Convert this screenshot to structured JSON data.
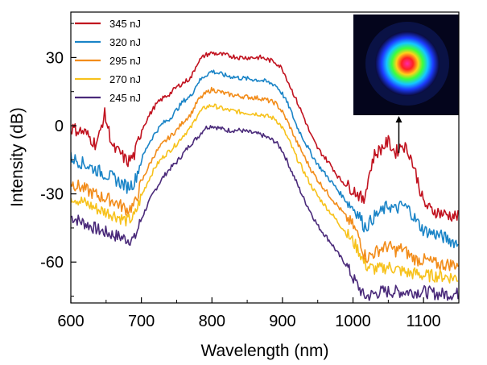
{
  "chart_data": {
    "type": "line",
    "xlabel": "Wavelength (nm)",
    "ylabel": "Intensity (dB)",
    "xlim": [
      600,
      1150
    ],
    "ylim": [
      -78,
      50
    ],
    "xticks": [
      600,
      700,
      800,
      900,
      1000,
      1100
    ],
    "yticks": [
      -60,
      -30,
      0,
      30
    ],
    "legend_position": "top-left",
    "inset": {
      "description": "beam profile image",
      "arrow_points_to_x": 1065
    },
    "series": [
      {
        "name": "345 nJ",
        "color": "#c1121f",
        "noise": 1.3,
        "points": [
          [
            600,
            -1
          ],
          [
            620,
            -3
          ],
          [
            635,
            -8
          ],
          [
            640,
            -5
          ],
          [
            645,
            2
          ],
          [
            648,
            5
          ],
          [
            652,
            0
          ],
          [
            660,
            -10
          ],
          [
            670,
            -12
          ],
          [
            680,
            -16
          ],
          [
            690,
            -13
          ],
          [
            700,
            -2
          ],
          [
            710,
            4
          ],
          [
            720,
            9
          ],
          [
            730,
            12
          ],
          [
            740,
            14
          ],
          [
            750,
            17
          ],
          [
            760,
            19
          ],
          [
            770,
            21
          ],
          [
            780,
            28
          ],
          [
            790,
            31
          ],
          [
            800,
            32
          ],
          [
            820,
            31
          ],
          [
            840,
            30
          ],
          [
            870,
            30
          ],
          [
            890,
            28
          ],
          [
            900,
            25
          ],
          [
            910,
            18
          ],
          [
            920,
            11
          ],
          [
            930,
            4
          ],
          [
            940,
            -4
          ],
          [
            950,
            -10
          ],
          [
            960,
            -14
          ],
          [
            970,
            -18
          ],
          [
            980,
            -23
          ],
          [
            990,
            -26
          ],
          [
            1000,
            -28
          ],
          [
            1010,
            -31
          ],
          [
            1015,
            -34
          ],
          [
            1020,
            -25
          ],
          [
            1030,
            -13
          ],
          [
            1040,
            -10
          ],
          [
            1050,
            -7
          ],
          [
            1060,
            -12
          ],
          [
            1070,
            -8
          ],
          [
            1080,
            -12
          ],
          [
            1090,
            -22
          ],
          [
            1100,
            -34
          ],
          [
            1110,
            -37
          ],
          [
            1120,
            -38
          ],
          [
            1130,
            -39
          ],
          [
            1150,
            -40
          ]
        ]
      },
      {
        "name": "320 nJ",
        "color": "#1a84c7",
        "noise": 1.3,
        "points": [
          [
            600,
            -14
          ],
          [
            620,
            -17
          ],
          [
            640,
            -20
          ],
          [
            660,
            -23
          ],
          [
            680,
            -27
          ],
          [
            690,
            -25
          ],
          [
            700,
            -15
          ],
          [
            710,
            -8
          ],
          [
            720,
            -3
          ],
          [
            730,
            1
          ],
          [
            740,
            3
          ],
          [
            750,
            7
          ],
          [
            760,
            11
          ],
          [
            770,
            13
          ],
          [
            780,
            19
          ],
          [
            790,
            22
          ],
          [
            800,
            24
          ],
          [
            820,
            22
          ],
          [
            840,
            21
          ],
          [
            870,
            20
          ],
          [
            890,
            18
          ],
          [
            900,
            14
          ],
          [
            910,
            8
          ],
          [
            920,
            0
          ],
          [
            930,
            -6
          ],
          [
            940,
            -12
          ],
          [
            950,
            -17
          ],
          [
            960,
            -21
          ],
          [
            970,
            -25
          ],
          [
            980,
            -29
          ],
          [
            990,
            -33
          ],
          [
            1000,
            -36
          ],
          [
            1010,
            -40
          ],
          [
            1015,
            -44
          ],
          [
            1020,
            -44
          ],
          [
            1030,
            -40
          ],
          [
            1040,
            -38
          ],
          [
            1050,
            -35
          ],
          [
            1060,
            -37
          ],
          [
            1070,
            -35
          ],
          [
            1080,
            -37
          ],
          [
            1090,
            -42
          ],
          [
            1100,
            -46
          ],
          [
            1120,
            -48
          ],
          [
            1150,
            -52
          ]
        ]
      },
      {
        "name": "295 nJ",
        "color": "#f28c1a",
        "noise": 1.3,
        "points": [
          [
            600,
            -25
          ],
          [
            620,
            -28
          ],
          [
            640,
            -31
          ],
          [
            660,
            -33
          ],
          [
            680,
            -37
          ],
          [
            690,
            -35
          ],
          [
            700,
            -25
          ],
          [
            710,
            -18
          ],
          [
            720,
            -12
          ],
          [
            730,
            -8
          ],
          [
            740,
            -5
          ],
          [
            750,
            -2
          ],
          [
            760,
            2
          ],
          [
            770,
            5
          ],
          [
            780,
            11
          ],
          [
            790,
            14
          ],
          [
            800,
            16
          ],
          [
            820,
            14
          ],
          [
            840,
            13
          ],
          [
            870,
            12
          ],
          [
            890,
            10
          ],
          [
            900,
            6
          ],
          [
            910,
            0
          ],
          [
            920,
            -7
          ],
          [
            930,
            -13
          ],
          [
            940,
            -19
          ],
          [
            950,
            -24
          ],
          [
            960,
            -28
          ],
          [
            970,
            -32
          ],
          [
            980,
            -36
          ],
          [
            990,
            -40
          ],
          [
            1000,
            -44
          ],
          [
            1010,
            -50
          ],
          [
            1015,
            -56
          ],
          [
            1020,
            -58
          ],
          [
            1030,
            -56
          ],
          [
            1040,
            -54
          ],
          [
            1050,
            -53
          ],
          [
            1060,
            -55
          ],
          [
            1070,
            -54
          ],
          [
            1080,
            -57
          ],
          [
            1090,
            -59
          ],
          [
            1100,
            -59
          ],
          [
            1120,
            -61
          ],
          [
            1150,
            -61
          ]
        ]
      },
      {
        "name": "270 nJ",
        "color": "#f7c21c",
        "noise": 1.3,
        "points": [
          [
            600,
            -31
          ],
          [
            620,
            -34
          ],
          [
            640,
            -37
          ],
          [
            660,
            -39
          ],
          [
            680,
            -42
          ],
          [
            690,
            -40
          ],
          [
            700,
            -31
          ],
          [
            710,
            -24
          ],
          [
            720,
            -18
          ],
          [
            730,
            -14
          ],
          [
            740,
            -11
          ],
          [
            750,
            -8
          ],
          [
            760,
            -4
          ],
          [
            770,
            -1
          ],
          [
            780,
            5
          ],
          [
            790,
            8
          ],
          [
            800,
            9
          ],
          [
            820,
            7
          ],
          [
            840,
            6
          ],
          [
            870,
            5
          ],
          [
            890,
            3
          ],
          [
            900,
            -1
          ],
          [
            910,
            -7
          ],
          [
            920,
            -14
          ],
          [
            930,
            -20
          ],
          [
            940,
            -26
          ],
          [
            950,
            -31
          ],
          [
            960,
            -35
          ],
          [
            970,
            -39
          ],
          [
            980,
            -43
          ],
          [
            990,
            -47
          ],
          [
            1000,
            -51
          ],
          [
            1010,
            -56
          ],
          [
            1015,
            -60
          ],
          [
            1020,
            -62
          ],
          [
            1030,
            -63
          ],
          [
            1040,
            -63
          ],
          [
            1050,
            -62
          ],
          [
            1060,
            -63
          ],
          [
            1070,
            -64
          ],
          [
            1080,
            -65
          ],
          [
            1090,
            -65
          ],
          [
            1100,
            -66
          ],
          [
            1120,
            -66
          ],
          [
            1150,
            -67
          ]
        ]
      },
      {
        "name": "245 nJ",
        "color": "#4a2a7a",
        "noise": 1.3,
        "points": [
          [
            600,
            -40
          ],
          [
            620,
            -43
          ],
          [
            640,
            -46
          ],
          [
            660,
            -48
          ],
          [
            680,
            -50
          ],
          [
            690,
            -50
          ],
          [
            700,
            -41
          ],
          [
            710,
            -34
          ],
          [
            720,
            -28
          ],
          [
            730,
            -23
          ],
          [
            740,
            -19
          ],
          [
            750,
            -16
          ],
          [
            760,
            -12
          ],
          [
            770,
            -8
          ],
          [
            780,
            -5
          ],
          [
            790,
            -1
          ],
          [
            800,
            0
          ],
          [
            820,
            -2
          ],
          [
            840,
            -2
          ],
          [
            870,
            -4
          ],
          [
            890,
            -7
          ],
          [
            900,
            -11
          ],
          [
            910,
            -18
          ],
          [
            920,
            -25
          ],
          [
            930,
            -32
          ],
          [
            940,
            -38
          ],
          [
            950,
            -44
          ],
          [
            960,
            -48
          ],
          [
            970,
            -52
          ],
          [
            980,
            -57
          ],
          [
            990,
            -61
          ],
          [
            1000,
            -67
          ],
          [
            1010,
            -72
          ],
          [
            1015,
            -75
          ],
          [
            1020,
            -75
          ],
          [
            1030,
            -74
          ],
          [
            1040,
            -73
          ],
          [
            1050,
            -73
          ],
          [
            1060,
            -73
          ],
          [
            1070,
            -73
          ],
          [
            1080,
            -73
          ],
          [
            1090,
            -73
          ],
          [
            1100,
            -73
          ],
          [
            1120,
            -74
          ],
          [
            1150,
            -74
          ]
        ]
      }
    ]
  }
}
